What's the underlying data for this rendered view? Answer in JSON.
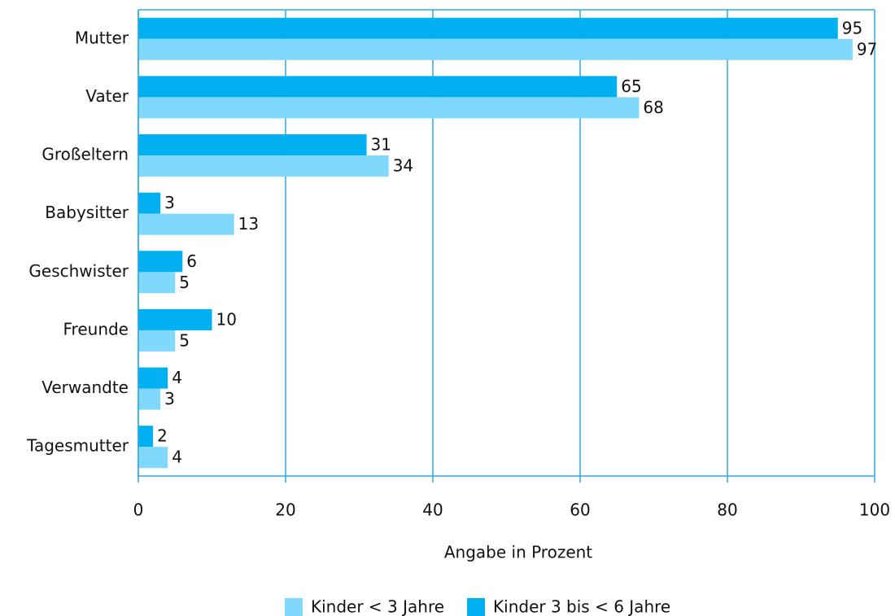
{
  "chart_data": {
    "type": "bar",
    "orientation": "horizontal",
    "x_label": "Angabe in Prozent",
    "categories": [
      "Mutter",
      "Vater",
      "Großeltern",
      "Babysitter",
      "Geschwister",
      "Freunde",
      "Verwandte",
      "Tagesmutter"
    ],
    "series": [
      {
        "name": "Kinder < 3 Jahre",
        "color": "#80d8fc",
        "values": [
          97,
          68,
          34,
          13,
          5,
          5,
          3,
          4
        ]
      },
      {
        "name": "Kinder 3 bis < 6 Jahre",
        "color": "#00b0f0",
        "values": [
          95,
          65,
          31,
          3,
          6,
          10,
          4,
          2
        ]
      }
    ],
    "xlim": [
      0,
      100
    ],
    "xticks": [
      0,
      20,
      40,
      60,
      80,
      100
    ],
    "grid": true,
    "legend": "bottom"
  }
}
